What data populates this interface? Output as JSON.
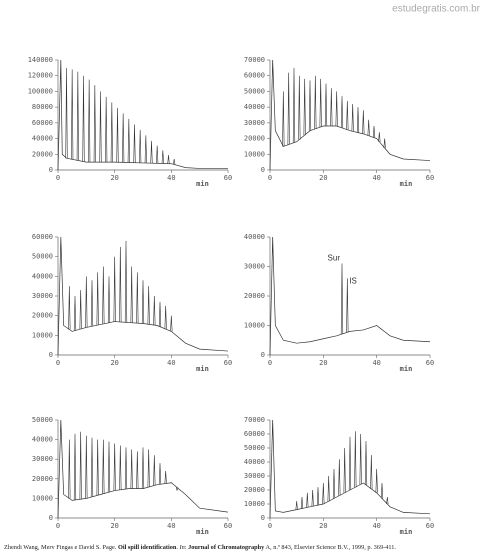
{
  "watermark": "estudegratis.com.br",
  "caption": [
    "Zhendi Wang, Merv Fingas e David S. Page. ",
    "Oil spill identification",
    ". ",
    "In",
    ": ",
    "Journal of Chromatography",
    " A, n.º 843, Elsevier Science B.V., 1999, p. 369-411."
  ],
  "chart_data": [
    {
      "type": "line",
      "xlabel": "min",
      "xlim": [
        0,
        60
      ],
      "xticks": [
        0,
        20,
        40,
        60
      ],
      "ylim": [
        0,
        140000
      ],
      "yticks": [
        0,
        20000,
        40000,
        60000,
        80000,
        100000,
        120000,
        140000
      ],
      "color": "#333333",
      "series": [
        {
          "x": [
            0,
            1,
            1.5,
            3,
            10,
            20,
            30,
            40,
            45,
            50,
            60
          ],
          "values": [
            0,
            140000,
            20000,
            15000,
            10000,
            10000,
            9000,
            8000,
            3000,
            2000,
            2000
          ]
        }
      ],
      "peaks": {
        "x": [
          3,
          5,
          7,
          9,
          11,
          13,
          15,
          17,
          19,
          21,
          23,
          25,
          27,
          29,
          31,
          33,
          35,
          37,
          39,
          41
        ],
        "values": [
          130000,
          128000,
          125000,
          120000,
          115000,
          108000,
          100000,
          93000,
          86000,
          79000,
          72000,
          65000,
          58000,
          51000,
          44000,
          37000,
          31000,
          25000,
          19000,
          14000
        ]
      }
    },
    {
      "type": "line",
      "xlabel": "min",
      "xlim": [
        0,
        60
      ],
      "xticks": [
        0,
        20,
        40,
        60
      ],
      "ylim": [
        0,
        70000
      ],
      "yticks": [
        0,
        10000,
        20000,
        30000,
        40000,
        50000,
        60000,
        70000
      ],
      "color": "#333333",
      "series": [
        {
          "x": [
            0,
            1,
            2,
            5,
            10,
            15,
            20,
            25,
            30,
            35,
            40,
            45,
            50,
            60
          ],
          "values": [
            0,
            70000,
            25000,
            15000,
            18000,
            25000,
            28000,
            28000,
            25000,
            23000,
            20000,
            10000,
            7000,
            6000
          ]
        }
      ],
      "peaks": {
        "x": [
          5,
          7,
          9,
          11,
          13,
          15,
          17,
          19,
          21,
          23,
          25,
          27,
          29,
          31,
          33,
          35,
          37,
          39,
          41,
          43
        ],
        "values": [
          50000,
          62000,
          65000,
          60000,
          58000,
          57000,
          60000,
          58000,
          55000,
          52000,
          50000,
          47000,
          44000,
          42000,
          40000,
          38000,
          32000,
          28000,
          24000,
          20000
        ]
      }
    },
    {
      "type": "line",
      "xlabel": "min",
      "xlim": [
        0,
        60
      ],
      "xticks": [
        0,
        20,
        40,
        60
      ],
      "ylim": [
        0,
        60000
      ],
      "yticks": [
        0,
        10000,
        20000,
        30000,
        40000,
        50000,
        60000
      ],
      "color": "#333333",
      "series": [
        {
          "x": [
            0,
            1,
            2,
            5,
            10,
            20,
            30,
            35,
            40,
            45,
            50,
            60
          ],
          "values": [
            0,
            60000,
            15000,
            12000,
            14000,
            17000,
            16000,
            15000,
            12000,
            6000,
            3000,
            2000
          ]
        }
      ],
      "peaks": {
        "x": [
          4,
          6,
          8,
          10,
          12,
          14,
          16,
          18,
          20,
          22,
          24,
          26,
          28,
          30,
          32,
          34,
          36,
          38,
          40
        ],
        "values": [
          35000,
          30000,
          33000,
          40000,
          38000,
          42000,
          45000,
          40000,
          50000,
          55000,
          58000,
          45000,
          42000,
          38000,
          35000,
          30000,
          27000,
          25000,
          20000
        ]
      }
    },
    {
      "type": "line",
      "xlabel": "min",
      "xlim": [
        0,
        60
      ],
      "xticks": [
        0,
        20,
        40,
        60
      ],
      "ylim": [
        0,
        40000
      ],
      "yticks": [
        0,
        10000,
        20000,
        30000,
        40000
      ],
      "color": "#333333",
      "series": [
        {
          "x": [
            0,
            1,
            2,
            5,
            10,
            15,
            20,
            25,
            30,
            35,
            40,
            45,
            50,
            60
          ],
          "values": [
            0,
            40000,
            10000,
            5000,
            4000,
            4500,
            5500,
            6500,
            8000,
            8500,
            10000,
            6500,
            5000,
            4500
          ]
        }
      ],
      "peaks": {
        "x": [
          27,
          29
        ],
        "values": [
          31000,
          26000
        ],
        "labels": [
          "Sur",
          "IS"
        ]
      }
    },
    {
      "type": "line",
      "xlabel": "min",
      "xlim": [
        0,
        60
      ],
      "xticks": [
        0,
        20,
        40,
        60
      ],
      "ylim": [
        0,
        50000
      ],
      "yticks": [
        0,
        10000,
        20000,
        30000,
        40000,
        50000
      ],
      "color": "#333333",
      "series": [
        {
          "x": [
            0,
            1,
            2,
            5,
            10,
            15,
            20,
            25,
            30,
            35,
            40,
            45,
            50,
            60
          ],
          "values": [
            0,
            50000,
            12000,
            9000,
            10000,
            12000,
            14000,
            15000,
            15000,
            17000,
            18000,
            12000,
            5000,
            3000
          ]
        }
      ],
      "peaks": {
        "x": [
          4,
          6,
          8,
          10,
          12,
          14,
          16,
          18,
          20,
          22,
          24,
          26,
          28,
          30,
          32,
          34,
          36,
          38,
          40,
          42
        ],
        "values": [
          40000,
          43000,
          44000,
          42000,
          41000,
          40000,
          40000,
          39000,
          38000,
          37000,
          36000,
          35000,
          34000,
          36000,
          35000,
          32000,
          28000,
          24000,
          18000,
          14000
        ]
      }
    },
    {
      "type": "line",
      "xlabel": "min",
      "xlim": [
        0,
        60
      ],
      "xticks": [
        0,
        20,
        40,
        60
      ],
      "ylim": [
        0,
        70000
      ],
      "yticks": [
        0,
        10000,
        20000,
        30000,
        40000,
        50000,
        60000,
        70000
      ],
      "color": "#333333",
      "series": [
        {
          "x": [
            0,
            1,
            2,
            5,
            10,
            15,
            20,
            25,
            30,
            35,
            40,
            45,
            50,
            60
          ],
          "values": [
            0,
            70000,
            5000,
            4000,
            6000,
            8000,
            10000,
            15000,
            20000,
            25000,
            18000,
            8000,
            4000,
            3000
          ]
        }
      ],
      "peaks": {
        "x": [
          10,
          12,
          14,
          16,
          18,
          20,
          22,
          24,
          26,
          28,
          30,
          32,
          34,
          36,
          38,
          40,
          42,
          44
        ],
        "values": [
          12000,
          15000,
          18000,
          20000,
          22000,
          25000,
          30000,
          35000,
          42000,
          50000,
          58000,
          62000,
          60000,
          55000,
          45000,
          35000,
          25000,
          15000
        ]
      }
    }
  ]
}
